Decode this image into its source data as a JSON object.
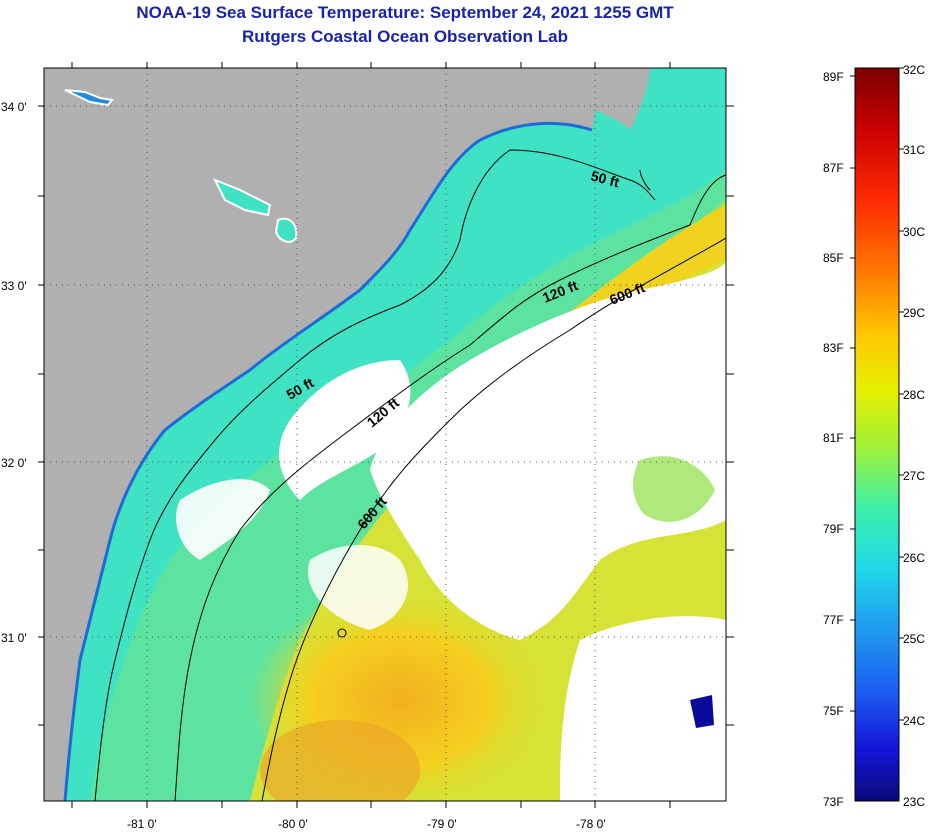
{
  "title": {
    "line1": "NOAA-19 Sea Surface Temperature:  September 24, 2021 1255 GMT",
    "line2": "Rutgers Coastal Ocean Observation Lab"
  },
  "map": {
    "lat_labels": [
      "34 0'",
      "33 0'",
      "32 0'",
      "31 0'"
    ],
    "lon_labels": [
      "-81 0'",
      "-80 0'",
      "-79 0'",
      "-78 0'"
    ],
    "contour_labels": [
      "50 ft",
      "120 ft",
      "600 ft",
      "50 ft",
      "120 ft",
      "600 ft"
    ],
    "colors": {
      "land": "#b0b0b0",
      "cloud": "#ffffff",
      "warm_water": "#f5cf1e",
      "mid_water": "#9be25a",
      "cool_water": "#3fe2c3",
      "coastal_cold": "#1f8be0"
    }
  },
  "colorbar": {
    "fahrenheit_labels": [
      "89F",
      "87F",
      "85F",
      "83F",
      "81F",
      "79F",
      "77F",
      "75F",
      "73F"
    ],
    "celsius_labels": [
      "32C",
      "31C",
      "30C",
      "29C",
      "28C",
      "27C",
      "26C",
      "25C",
      "24C",
      "23C"
    ],
    "gradient_colors": [
      "#7a0000",
      "#c80000",
      "#ff2a00",
      "#ff7a00",
      "#ffc400",
      "#e6ef00",
      "#9cf03a",
      "#3ef0a8",
      "#1fd9e8",
      "#1fa0ef",
      "#1b5ff0",
      "#1414d8",
      "#0a0a7a"
    ]
  }
}
